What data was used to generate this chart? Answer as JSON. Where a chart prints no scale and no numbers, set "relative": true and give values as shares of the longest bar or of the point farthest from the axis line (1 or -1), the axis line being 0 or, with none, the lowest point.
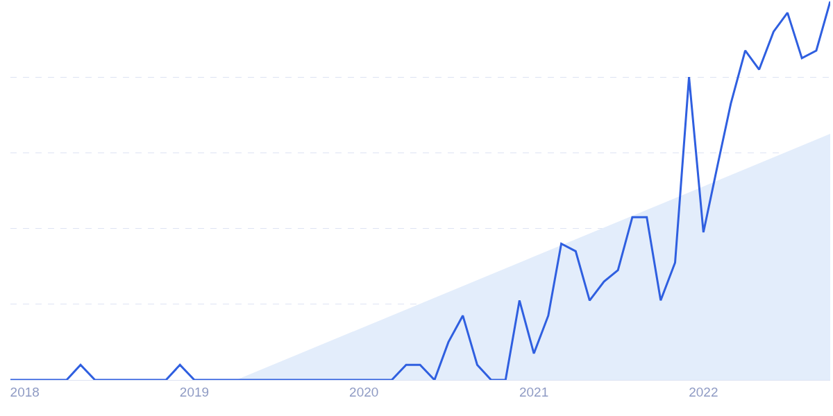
{
  "chart_data": {
    "type": "line",
    "relative": true,
    "grid": "y",
    "x": [
      "2017-12",
      "2018-01",
      "2018-02",
      "2018-03",
      "2018-04",
      "2018-05",
      "2018-06",
      "2018-07",
      "2018-08",
      "2018-09",
      "2018-10",
      "2018-11",
      "2018-12",
      "2019-01",
      "2019-02",
      "2019-03",
      "2019-04",
      "2019-05",
      "2019-06",
      "2019-07",
      "2019-08",
      "2019-09",
      "2019-10",
      "2019-11",
      "2019-12",
      "2020-01",
      "2020-02",
      "2020-03",
      "2020-04",
      "2020-05",
      "2020-06",
      "2020-07",
      "2020-08",
      "2020-09",
      "2020-10",
      "2020-11",
      "2020-12",
      "2021-01",
      "2021-02",
      "2021-03",
      "2021-04",
      "2021-05",
      "2021-06",
      "2021-07",
      "2021-08",
      "2021-09",
      "2021-10",
      "2021-11",
      "2021-12",
      "2022-01",
      "2022-02",
      "2022-03",
      "2022-04",
      "2022-05",
      "2022-06",
      "2022-07",
      "2022-08",
      "2022-09",
      "2022-10"
    ],
    "xlim": [
      "2017-12",
      "2022-10"
    ],
    "xticks": [
      "2018",
      "2019",
      "2020",
      "2021",
      "2022"
    ],
    "series": [
      {
        "type": "area",
        "color": "#e3edfb",
        "x": [
          "2019-04",
          "2022-10"
        ],
        "values": [
          0,
          0.65
        ]
      },
      {
        "color": "#2f5fe0",
        "values": [
          0,
          0,
          0,
          0,
          0,
          0.04,
          0,
          0,
          0,
          0,
          0,
          0,
          0.04,
          0,
          0,
          0,
          0,
          0,
          0,
          0,
          0,
          0,
          0,
          0,
          0,
          0,
          0,
          0,
          0.04,
          0.04,
          0,
          0.1,
          0.17,
          0.04,
          0,
          0,
          0.21,
          0.07,
          0.17,
          0.36,
          0.34,
          0.21,
          0.26,
          0.29,
          0.43,
          0.43,
          0.21,
          0.31,
          0.8,
          0.39,
          0.57,
          0.73,
          0.87,
          0.82,
          0.92,
          0.97,
          0.85,
          0.87,
          1.0
        ]
      }
    ]
  }
}
